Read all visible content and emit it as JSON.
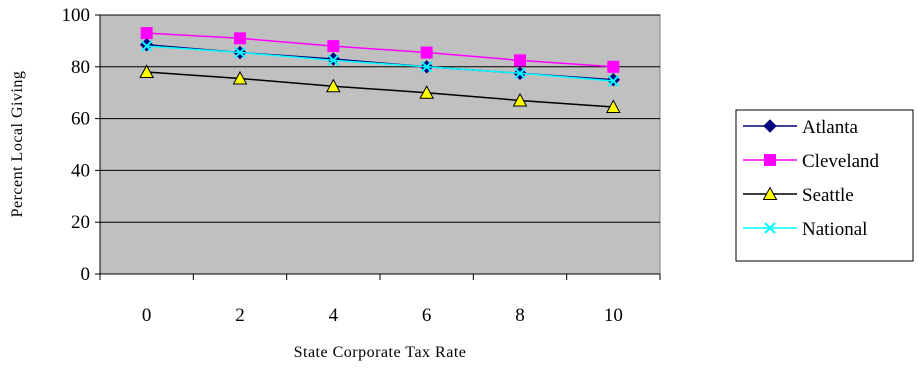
{
  "chart_data": {
    "type": "line",
    "title": "",
    "xlabel": "State Corporate Tax Rate",
    "ylabel": "Percent Local Giving",
    "x": [
      0,
      2,
      4,
      6,
      8,
      10
    ],
    "xticks": [
      "0",
      "2",
      "4",
      "6",
      "8",
      "10"
    ],
    "yticks": [
      "0",
      "20",
      "40",
      "60",
      "80",
      "100"
    ],
    "ylim": [
      0,
      100
    ],
    "grid": "horizontal",
    "plot_background": "#c0c0c0",
    "legend_position": "right",
    "series": [
      {
        "name": "Atlanta",
        "values": [
          88.5,
          85.5,
          83,
          80,
          77.5,
          75
        ],
        "color": "#000080",
        "marker": "diamond"
      },
      {
        "name": "Cleveland",
        "values": [
          93,
          91,
          88,
          85.5,
          82.5,
          80
        ],
        "color": "#ff00ff",
        "marker": "square"
      },
      {
        "name": "Seattle",
        "values": [
          78,
          75.5,
          72.5,
          70,
          67,
          64.5
        ],
        "color": "#000000",
        "marker": "triangle"
      },
      {
        "name": "National",
        "values": [
          88,
          85.5,
          82.5,
          80,
          77.5,
          74.5
        ],
        "color": "#00ffff",
        "marker": "x"
      }
    ]
  }
}
